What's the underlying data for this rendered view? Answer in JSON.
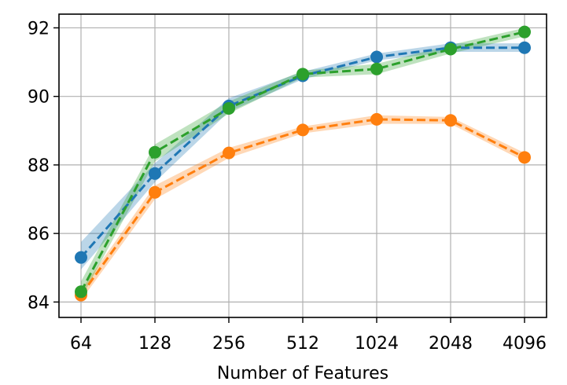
{
  "chart_data": {
    "type": "line",
    "title": "",
    "xlabel": "Number of Features",
    "ylabel": "",
    "x_scale": "log2",
    "categories": [
      "64",
      "128",
      "256",
      "512",
      "1024",
      "2048",
      "4096"
    ],
    "x": [
      64,
      128,
      256,
      512,
      1024,
      2048,
      4096
    ],
    "ylim": [
      83.55,
      92.4
    ],
    "yticks": [
      84,
      86,
      88,
      90,
      92
    ],
    "grid": true,
    "legend": "none",
    "series": [
      {
        "color": "#1f77b4",
        "marker": "circle",
        "linestyle": "dashed",
        "values": [
          85.3,
          87.75,
          89.72,
          90.6,
          91.15,
          91.42,
          91.42
        ],
        "band_lower": [
          84.95,
          87.5,
          89.55,
          90.5,
          91.05,
          91.3,
          91.3
        ],
        "band_upper": [
          85.75,
          88.05,
          89.95,
          90.72,
          91.25,
          91.55,
          91.55
        ]
      },
      {
        "color": "#ff7f0e",
        "marker": "circle",
        "linestyle": "dashed",
        "values": [
          84.2,
          87.2,
          88.35,
          89.02,
          89.33,
          89.3,
          88.22
        ],
        "band_lower": [
          84.05,
          87.0,
          88.2,
          88.92,
          89.2,
          89.2,
          88.1
        ],
        "band_upper": [
          84.35,
          87.4,
          88.5,
          89.12,
          89.45,
          89.4,
          88.35
        ]
      },
      {
        "color": "#2ca02c",
        "marker": "circle",
        "linestyle": "dashed",
        "values": [
          84.3,
          88.37,
          89.65,
          90.65,
          90.8,
          91.38,
          91.88
        ],
        "band_lower": [
          84.1,
          88.1,
          89.5,
          90.55,
          90.65,
          91.25,
          91.75
        ],
        "band_upper": [
          84.6,
          88.6,
          89.85,
          90.75,
          90.95,
          91.5,
          92.0
        ]
      }
    ]
  }
}
